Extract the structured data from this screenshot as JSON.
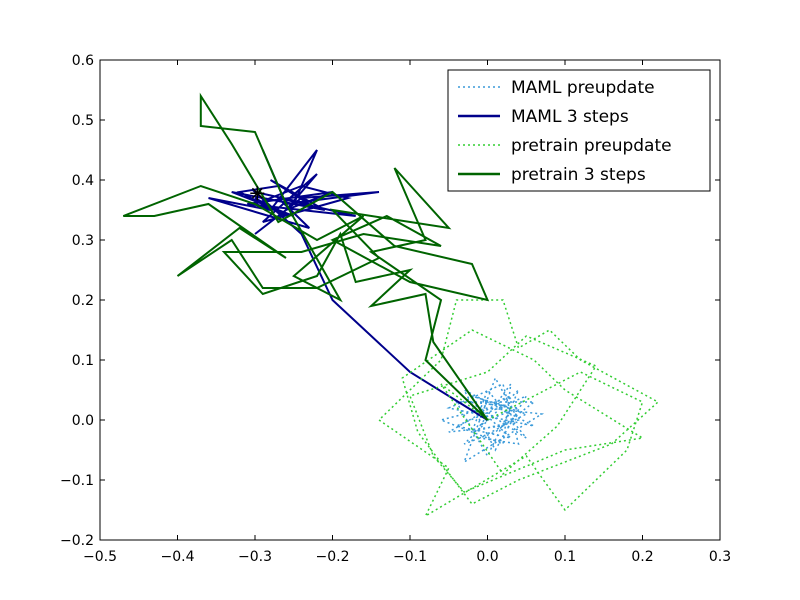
{
  "chart_data": {
    "type": "line",
    "title": "",
    "xlabel": "",
    "ylabel": "",
    "xlim": [
      -0.5,
      0.3
    ],
    "ylim": [
      -0.2,
      0.6
    ],
    "xticks": [
      -0.5,
      -0.4,
      -0.3,
      -0.2,
      -0.1,
      0.0,
      0.1,
      0.2,
      0.3
    ],
    "yticks": [
      -0.2,
      -0.1,
      0.0,
      0.1,
      0.2,
      0.3,
      0.4,
      0.5,
      0.6
    ],
    "xtick_labels": [
      "−0.5",
      "−0.4",
      "−0.3",
      "−0.2",
      "−0.1",
      "0.0",
      "0.1",
      "0.2",
      "0.3"
    ],
    "ytick_labels": [
      "−0.2",
      "−0.1",
      "0.0",
      "0.1",
      "0.2",
      "0.3",
      "0.4",
      "0.5",
      "0.6"
    ],
    "grid": false,
    "legend": {
      "placement": "top-right",
      "entries": [
        "MAML preupdate",
        "MAML 3 steps",
        "pretrain preupdate",
        "pretrain 3 steps"
      ]
    },
    "markers": [
      {
        "symbol": "star",
        "x": -0.297,
        "y": 0.378,
        "color": "#000000"
      }
    ],
    "series": [
      {
        "name": "MAML preupdate",
        "style": "dotted",
        "color": "#3a9ad9",
        "points": [
          [
            0.0,
            0.0
          ],
          [
            0.04,
            0.02
          ],
          [
            -0.02,
            0.03
          ],
          [
            0.03,
            -0.03
          ],
          [
            -0.04,
            -0.01
          ],
          [
            0.05,
            0.04
          ],
          [
            0.01,
            -0.05
          ],
          [
            -0.03,
            0.05
          ],
          [
            0.06,
            -0.01
          ],
          [
            -0.05,
            0.02
          ],
          [
            0.02,
            0.06
          ],
          [
            0.04,
            -0.04
          ],
          [
            -0.01,
            -0.03
          ],
          [
            0.05,
            0.01
          ],
          [
            -0.02,
            0.04
          ],
          [
            0.03,
            0.02
          ],
          [
            0.0,
            -0.06
          ],
          [
            -0.04,
            0.03
          ],
          [
            0.06,
            0.03
          ],
          [
            0.01,
            -0.02
          ],
          [
            -0.03,
            -0.04
          ],
          [
            0.04,
            0.05
          ],
          [
            0.02,
            -0.01
          ],
          [
            -0.05,
            -0.02
          ],
          [
            0.03,
            0.04
          ],
          [
            -0.01,
            0.02
          ],
          [
            0.05,
            -0.03
          ],
          [
            0.0,
            0.05
          ],
          [
            -0.02,
            -0.02
          ],
          [
            0.04,
            0.0
          ],
          [
            0.01,
            0.07
          ],
          [
            -0.03,
            -0.07
          ],
          [
            0.07,
            0.01
          ],
          [
            0.0,
            0.02
          ],
          [
            -0.06,
            0.0
          ],
          [
            0.02,
            -0.04
          ],
          [
            0.03,
            0.06
          ],
          [
            -0.01,
            -0.01
          ],
          [
            0.0,
            0.0
          ]
        ]
      },
      {
        "name": "MAML 3 steps",
        "style": "solid",
        "color": "#00008b",
        "points": [
          [
            0.0,
            0.0
          ],
          [
            -0.1,
            0.08
          ],
          [
            -0.2,
            0.2
          ],
          [
            -0.24,
            0.31
          ],
          [
            -0.3,
            0.38
          ],
          [
            -0.23,
            0.36
          ],
          [
            -0.28,
            0.4
          ],
          [
            -0.21,
            0.35
          ],
          [
            -0.33,
            0.38
          ],
          [
            -0.25,
            0.34
          ],
          [
            -0.3,
            0.36
          ],
          [
            -0.24,
            0.39
          ],
          [
            -0.18,
            0.37
          ],
          [
            -0.29,
            0.33
          ],
          [
            -0.22,
            0.41
          ],
          [
            -0.26,
            0.35
          ],
          [
            -0.2,
            0.38
          ],
          [
            -0.31,
            0.36
          ],
          [
            -0.17,
            0.34
          ],
          [
            -0.27,
            0.37
          ],
          [
            -0.23,
            0.32
          ],
          [
            -0.36,
            0.37
          ],
          [
            -0.28,
            0.35
          ],
          [
            -0.22,
            0.45
          ],
          [
            -0.25,
            0.36
          ],
          [
            -0.3,
            0.31
          ],
          [
            -0.24,
            0.37
          ],
          [
            -0.14,
            0.38
          ],
          [
            -0.26,
            0.36
          ],
          [
            -0.29,
            0.45
          ],
          [
            -0.27,
            0.39
          ],
          [
            -0.32,
            0.38
          ],
          [
            -0.26,
            0.34
          ],
          [
            -0.3,
            0.37
          ]
        ]
      },
      {
        "name": "pretrain preupdate",
        "style": "dotted",
        "color": "#32cd32",
        "points": [
          [
            0.0,
            0.0
          ],
          [
            0.12,
            0.08
          ],
          [
            0.2,
            0.03
          ],
          [
            0.18,
            -0.05
          ],
          [
            0.1,
            -0.15
          ],
          [
            0.05,
            -0.06
          ],
          [
            -0.08,
            -0.16
          ],
          [
            -0.05,
            -0.08
          ],
          [
            -0.14,
            0.0
          ],
          [
            -0.06,
            0.1
          ],
          [
            -0.04,
            0.2
          ],
          [
            0.02,
            0.2
          ],
          [
            0.04,
            0.12
          ],
          [
            0.08,
            0.15
          ],
          [
            0.12,
            0.1
          ],
          [
            0.22,
            0.03
          ],
          [
            0.16,
            -0.04
          ],
          [
            0.04,
            -0.1
          ],
          [
            -0.02,
            -0.14
          ],
          [
            -0.09,
            -0.02
          ],
          [
            -0.11,
            0.07
          ],
          [
            -0.02,
            0.15
          ],
          [
            0.06,
            0.1
          ],
          [
            0.1,
            0.05
          ],
          [
            0.2,
            -0.03
          ],
          [
            0.1,
            -0.05
          ],
          [
            -0.03,
            -0.12
          ],
          [
            -0.07,
            -0.06
          ],
          [
            -0.1,
            0.04
          ],
          [
            0.0,
            0.08
          ],
          [
            0.05,
            0.14
          ],
          [
            0.14,
            0.09
          ],
          [
            0.09,
            -0.01
          ],
          [
            0.02,
            -0.09
          ],
          [
            -0.06,
            0.06
          ],
          [
            0.0,
            0.0
          ]
        ]
      },
      {
        "name": "pretrain 3 steps",
        "style": "solid",
        "color": "#006400",
        "points": [
          [
            0.0,
            0.0
          ],
          [
            -0.08,
            0.1
          ],
          [
            -0.06,
            0.2
          ],
          [
            -0.15,
            0.28
          ],
          [
            -0.08,
            0.3
          ],
          [
            -0.12,
            0.42
          ],
          [
            -0.05,
            0.32
          ],
          [
            -0.2,
            0.35
          ],
          [
            -0.14,
            0.27
          ],
          [
            -0.22,
            0.22
          ],
          [
            -0.29,
            0.22
          ],
          [
            -0.33,
            0.3
          ],
          [
            -0.4,
            0.24
          ],
          [
            -0.32,
            0.32
          ],
          [
            -0.26,
            0.27
          ],
          [
            -0.36,
            0.36
          ],
          [
            -0.43,
            0.34
          ],
          [
            -0.47,
            0.34
          ],
          [
            -0.37,
            0.39
          ],
          [
            -0.3,
            0.36
          ],
          [
            -0.22,
            0.3
          ],
          [
            -0.16,
            0.34
          ],
          [
            -0.25,
            0.24
          ],
          [
            -0.19,
            0.2
          ],
          [
            -0.26,
            0.36
          ],
          [
            -0.3,
            0.48
          ],
          [
            -0.37,
            0.49
          ],
          [
            -0.37,
            0.54
          ],
          [
            -0.33,
            0.46
          ],
          [
            -0.27,
            0.33
          ],
          [
            -0.2,
            0.38
          ],
          [
            -0.12,
            0.29
          ],
          [
            -0.02,
            0.26
          ],
          [
            0.0,
            0.2
          ],
          [
            -0.1,
            0.23
          ],
          [
            -0.2,
            0.3
          ],
          [
            -0.13,
            0.34
          ],
          [
            -0.06,
            0.29
          ],
          [
            -0.16,
            0.31
          ],
          [
            -0.24,
            0.28
          ],
          [
            -0.34,
            0.28
          ],
          [
            -0.29,
            0.21
          ],
          [
            -0.22,
            0.24
          ],
          [
            -0.19,
            0.31
          ],
          [
            -0.17,
            0.23
          ],
          [
            -0.1,
            0.25
          ],
          [
            -0.15,
            0.19
          ],
          [
            -0.08,
            0.21
          ],
          [
            -0.07,
            0.13
          ],
          [
            0.0,
            0.0
          ]
        ]
      }
    ]
  }
}
